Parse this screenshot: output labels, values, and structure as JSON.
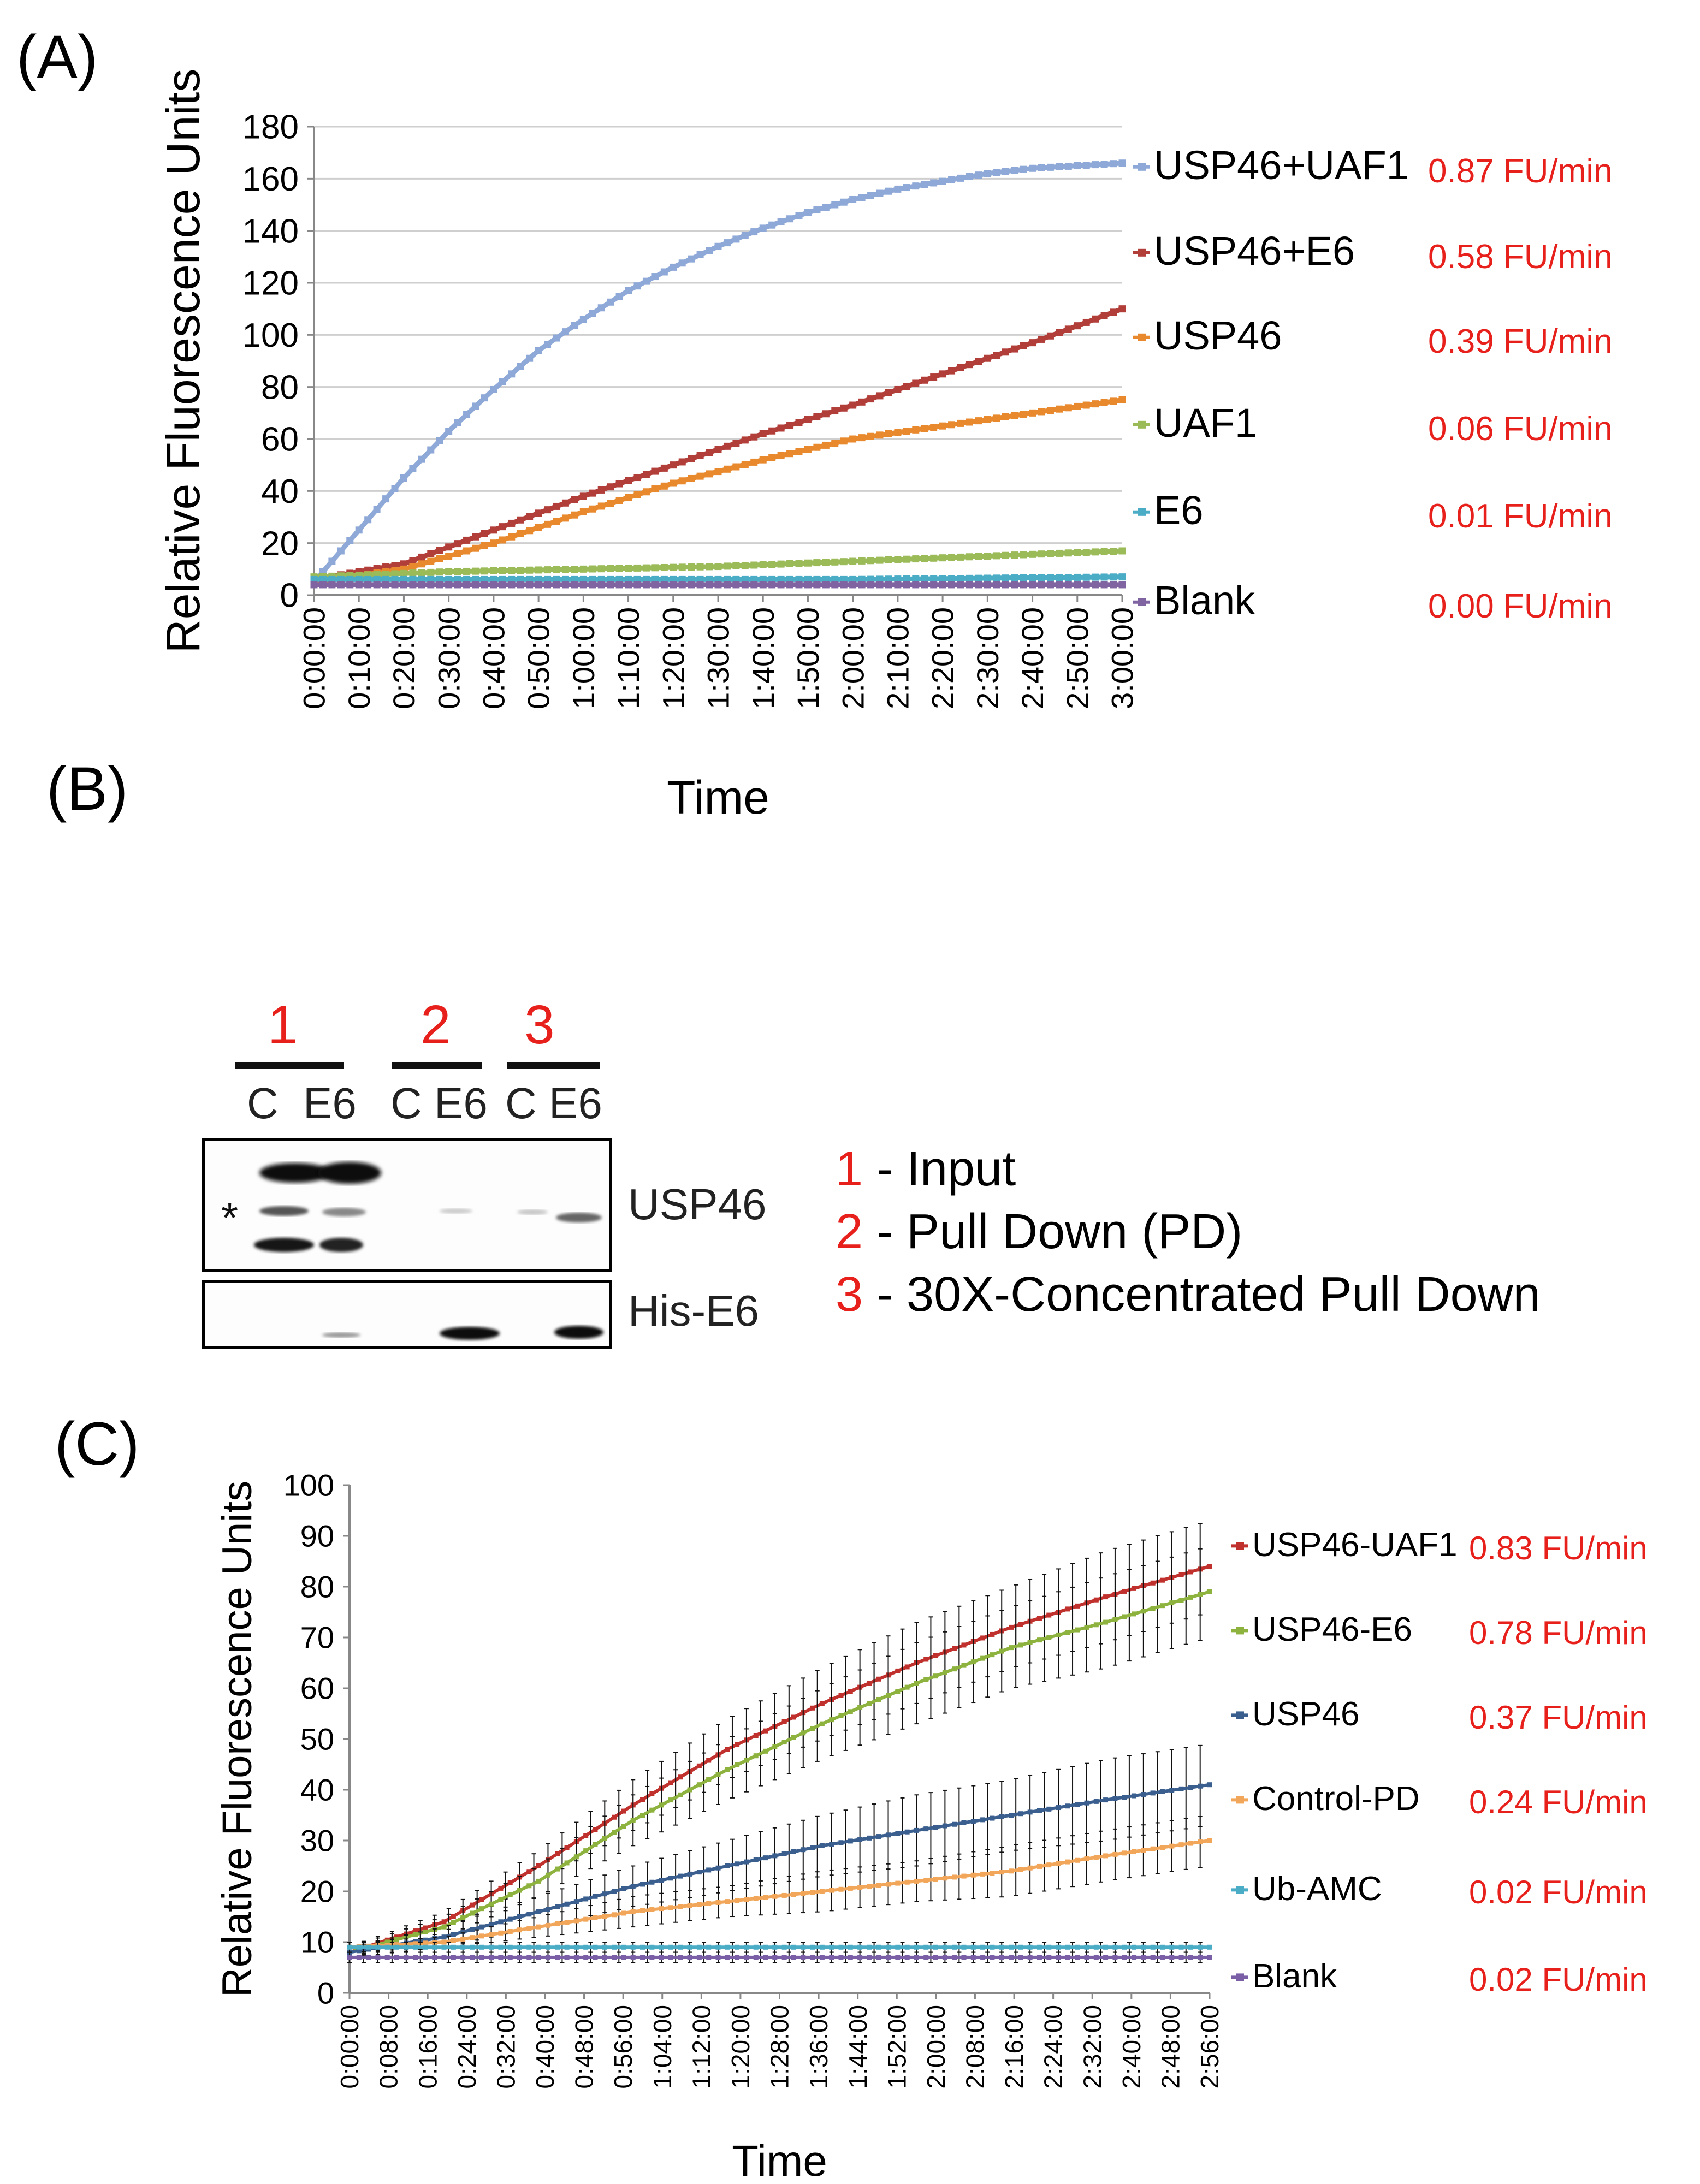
{
  "panels": {
    "a_label": "(A)",
    "b_label": "(B)",
    "c_label": "(C)"
  },
  "chart_data": [
    {
      "type": "line",
      "panel": "A",
      "xlabel": "Time",
      "ylabel": "Relative Fluorescence Units",
      "ylim": [
        0,
        180
      ],
      "yticks": [
        0,
        20,
        40,
        60,
        80,
        100,
        120,
        140,
        160,
        180
      ],
      "xmax_min": 180,
      "xtick_labels": [
        "0:00:00",
        "0:10:00",
        "0:20:00",
        "0:30:00",
        "0:40:00",
        "0:50:00",
        "1:00:00",
        "1:10:00",
        "1:20:00",
        "1:30:00",
        "1:40:00",
        "1:50:00",
        "2:00:00",
        "2:10:00",
        "2:20:00",
        "2:30:00",
        "2:40:00",
        "2:50:00",
        "3:00:00"
      ],
      "grid": true,
      "legend": "right",
      "series": [
        {
          "name": "USP46+UAF1",
          "rate": "0.87 FU/min",
          "color": "#8ea9d8",
          "x": [
            0,
            10,
            20,
            30,
            40,
            50,
            60,
            70,
            80,
            90,
            100,
            110,
            120,
            130,
            140,
            150,
            160,
            170,
            180
          ],
          "values": [
            5,
            25,
            45,
            63,
            79,
            94,
            106,
            117,
            126,
            134,
            141,
            147,
            152,
            156,
            159,
            162,
            164,
            165,
            166
          ]
        },
        {
          "name": "USP46+E6",
          "rate": "0.58 FU/min",
          "color": "#b23e3a",
          "x": [
            0,
            20,
            40,
            60,
            80,
            100,
            120,
            140,
            160,
            180
          ],
          "values": [
            6,
            12,
            25,
            38,
            50,
            62,
            73,
            85,
            97,
            110
          ]
        },
        {
          "name": "USP46",
          "rate": "0.39 FU/min",
          "color": "#e8892e",
          "x": [
            0,
            20,
            40,
            60,
            80,
            100,
            120,
            140,
            160,
            180
          ],
          "values": [
            5,
            10,
            20,
            32,
            43,
            52,
            60,
            65,
            70,
            75
          ]
        },
        {
          "name": "UAF1",
          "rate": "0.06 FU/min",
          "color": "#9bbb59",
          "x": [
            0,
            30,
            60,
            90,
            120,
            150,
            180
          ],
          "values": [
            7,
            9,
            10,
            11,
            13,
            15,
            17
          ]
        },
        {
          "name": "E6",
          "rate": "0.01 FU/min",
          "color": "#4bacc6",
          "x": [
            0,
            60,
            120,
            180
          ],
          "values": [
            6,
            6,
            6,
            7
          ]
        },
        {
          "name": "Blank",
          "rate": "0.00 FU/min",
          "color": "#8064a2",
          "x": [
            0,
            60,
            120,
            180
          ],
          "values": [
            4,
            4,
            4,
            4
          ]
        }
      ]
    },
    {
      "type": "line",
      "panel": "C",
      "xlabel": "Time",
      "ylabel": "Relative Fluorescence Units",
      "ylim": [
        0,
        100
      ],
      "yticks": [
        0,
        10,
        20,
        30,
        40,
        50,
        60,
        70,
        80,
        90,
        100
      ],
      "xmax_min": 182,
      "xtick_labels": [
        "0:00:00",
        "0:08:00",
        "0:16:00",
        "0:24:00",
        "0:32:00",
        "0:40:00",
        "0:48:00",
        "0:56:00",
        "1:04:00",
        "1:12:00",
        "1:20:00",
        "1:28:00",
        "1:36:00",
        "1:44:00",
        "1:52:00",
        "2:00:00",
        "2:08:00",
        "2:16:00",
        "2:24:00",
        "2:32:00",
        "2:40:00",
        "2:48:00",
        "2:56:00"
      ],
      "grid": false,
      "legend": "right",
      "series": [
        {
          "name": "USP46-UAF1",
          "rate": "0.83 FU/min",
          "color": "#c0312d",
          "x": [
            0,
            20,
            40,
            60,
            80,
            100,
            120,
            140,
            160,
            182
          ],
          "values": [
            8,
            14,
            25,
            37,
            48,
            57,
            65,
            72,
            78,
            84
          ],
          "err": [
            1,
            2,
            3,
            5,
            6,
            7,
            8,
            8,
            9,
            9
          ]
        },
        {
          "name": "USP46-E6",
          "rate": "0.78 FU/min",
          "color": "#8db33e",
          "x": [
            0,
            20,
            40,
            60,
            80,
            100,
            120,
            140,
            160,
            182
          ],
          "values": [
            8,
            13,
            22,
            34,
            44,
            53,
            61,
            68,
            73,
            79
          ],
          "err": [
            1,
            2,
            3,
            5,
            6,
            7,
            8,
            8,
            9,
            9
          ]
        },
        {
          "name": "USP46",
          "rate": "0.37 FU/min",
          "color": "#3a5f8f",
          "x": [
            0,
            20,
            40,
            60,
            80,
            100,
            120,
            140,
            160,
            182
          ],
          "values": [
            8,
            11,
            16,
            21,
            25,
            29,
            32,
            35,
            38,
            41
          ],
          "err": [
            1,
            2,
            3,
            4,
            5,
            6,
            7,
            7,
            8,
            8
          ]
        },
        {
          "name": "Control-PD",
          "rate": "0.24 FU/min",
          "color": "#f2a65a",
          "x": [
            0,
            20,
            40,
            60,
            80,
            100,
            120,
            140,
            160,
            182
          ],
          "values": [
            9,
            10,
            13,
            16,
            18,
            20,
            22,
            24,
            27,
            30
          ],
          "err": [
            1,
            1,
            2,
            3,
            3,
            4,
            4,
            5,
            5,
            5
          ]
        },
        {
          "name": "Ub-AMC",
          "rate": "0.02 FU/min",
          "color": "#4bacc6",
          "x": [
            0,
            60,
            120,
            182
          ],
          "values": [
            9,
            9,
            9,
            9
          ],
          "err": [
            1,
            1,
            1,
            1
          ]
        },
        {
          "name": "Blank",
          "rate": "0.02 FU/min",
          "color": "#7a5fa6",
          "x": [
            0,
            60,
            120,
            182
          ],
          "values": [
            7,
            7,
            7,
            7
          ],
          "err": [
            1,
            1,
            1,
            1
          ]
        }
      ]
    }
  ],
  "blot": {
    "group1_num": "1",
    "group2_num": "2",
    "group3_num": "3",
    "lane_labels": [
      "C",
      "E6",
      "C",
      "E6",
      "C",
      "E6"
    ],
    "asterisk": "*",
    "row1_label": "USP46",
    "row2_label": "His-E6",
    "legend": [
      {
        "num": "1",
        "text": " - Input"
      },
      {
        "num": "2",
        "text": " - Pull Down (PD)"
      },
      {
        "num": "3",
        "text": " - 30X-Concentrated Pull Down"
      }
    ]
  }
}
